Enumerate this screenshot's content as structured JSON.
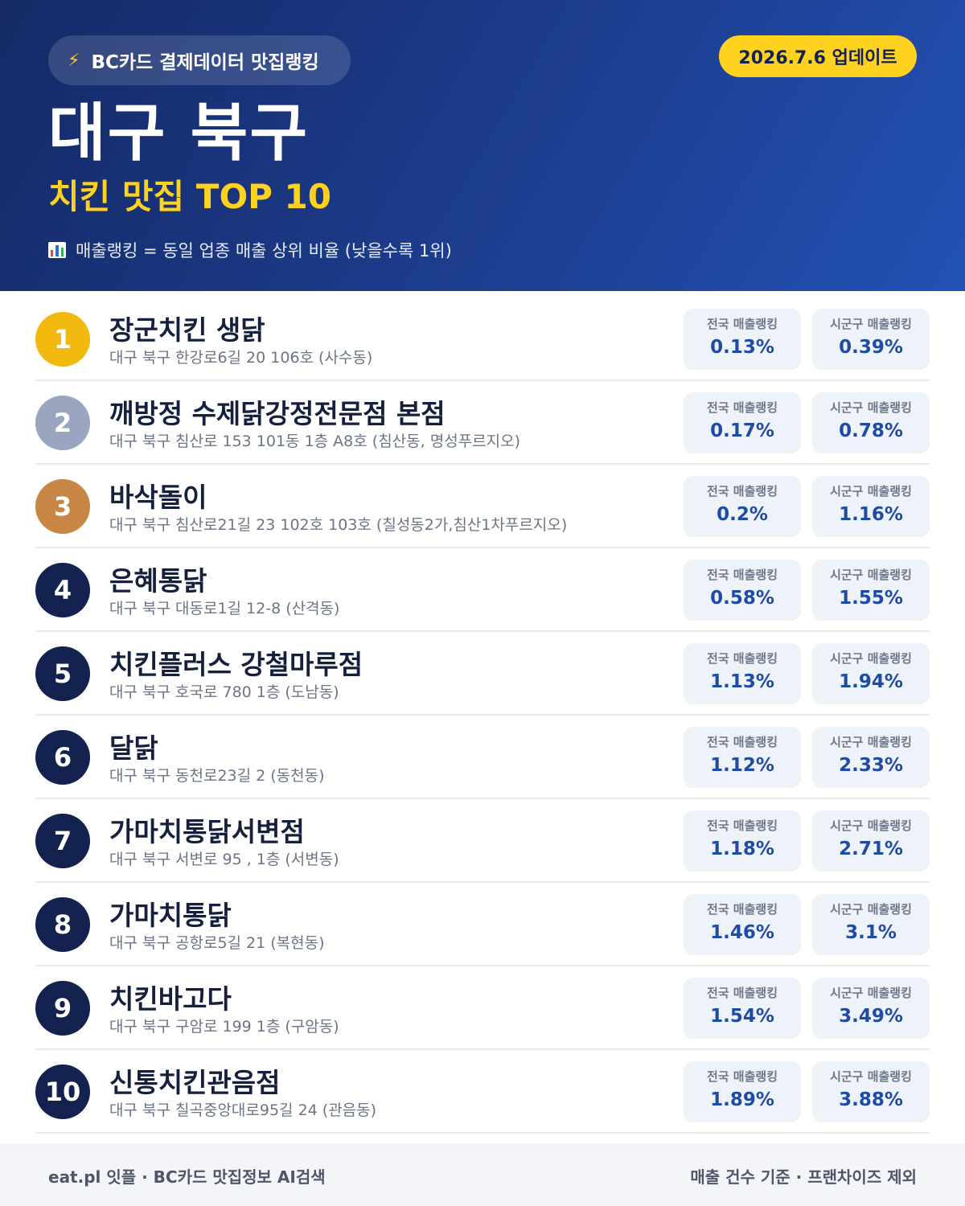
{
  "header": {
    "source_label": "BC카드 결제데이터 맛집랭킹",
    "bolt_icon": "⚡",
    "update_label": "2026.7.6 업데이트",
    "region": "대구 북구",
    "subtitle": "치킨 맛집 TOP 10",
    "legend_note": "매출랭킹 = 동일 업종 매출 상위 비율 (낮을수록 1위)"
  },
  "labels": {
    "national": "전국 매출랭킹",
    "local": "시군구 매출랭킹"
  },
  "badge_colors": {
    "gold": "#f1b80e",
    "silver": "#9aa6bf",
    "bronze": "#c98747",
    "default": "#13224f"
  },
  "restaurants": [
    {
      "rank": "1",
      "name": "장군치킨 생닭",
      "address": "대구 북구 한강로6길 20 106호 (사수동)",
      "national": "0.13%",
      "local": "0.39%"
    },
    {
      "rank": "2",
      "name": "깨방정 수제닭강정전문점 본점",
      "address": "대구 북구 침산로 153 101동 1층 A8호 (침산동, 명성푸르지오)",
      "national": "0.17%",
      "local": "0.78%"
    },
    {
      "rank": "3",
      "name": "바삭돌이",
      "address": "대구 북구 침산로21길 23 102호 103호 (칠성동2가,침산1차푸르지오)",
      "national": "0.2%",
      "local": "1.16%"
    },
    {
      "rank": "4",
      "name": "은혜통닭",
      "address": "대구 북구 대동로1길 12-8 (산격동)",
      "national": "0.58%",
      "local": "1.55%"
    },
    {
      "rank": "5",
      "name": "치킨플러스 강철마루점",
      "address": "대구 북구 호국로 780 1층 (도남동)",
      "national": "1.13%",
      "local": "1.94%"
    },
    {
      "rank": "6",
      "name": "달닭",
      "address": "대구 북구 동천로23길 2 (동천동)",
      "national": "1.12%",
      "local": "2.33%"
    },
    {
      "rank": "7",
      "name": "가마치통닭서변점",
      "address": "대구 북구 서변로 95 , 1층 (서변동)",
      "national": "1.18%",
      "local": "2.71%"
    },
    {
      "rank": "8",
      "name": "가마치통닭",
      "address": "대구 북구 공항로5길 21 (복현동)",
      "national": "1.46%",
      "local": "3.1%"
    },
    {
      "rank": "9",
      "name": "치킨바고다",
      "address": "대구 북구 구암로 199 1층 (구암동)",
      "national": "1.54%",
      "local": "3.49%"
    },
    {
      "rank": "10",
      "name": "신통치킨관음점",
      "address": "대구 북구 칠곡중앙대로95길 24 (관음동)",
      "national": "1.89%",
      "local": "3.88%"
    }
  ],
  "footer": {
    "left": "eat.pl 잇플 · BC카드 맛집정보 AI검색",
    "right": "매출 건수 기준 · 프랜차이즈 제외"
  }
}
